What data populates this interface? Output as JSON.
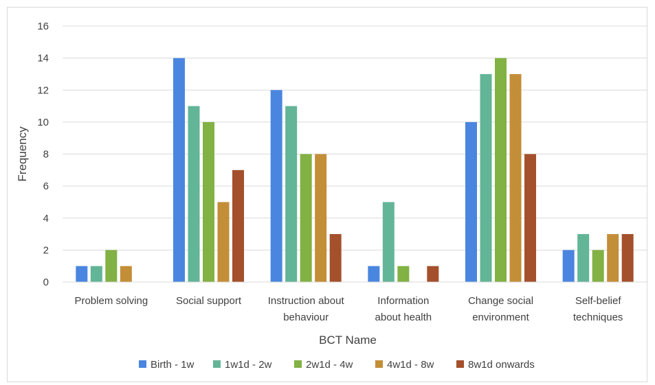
{
  "chart_data": {
    "type": "bar",
    "title": "",
    "xlabel": "BCT Name",
    "ylabel": "Frequency",
    "ylim": [
      0,
      16
    ],
    "yticks": [
      0,
      2,
      4,
      6,
      8,
      10,
      12,
      14,
      16
    ],
    "grid": true,
    "legend_position": "bottom",
    "categories": [
      [
        "Problem solving"
      ],
      [
        "Social support"
      ],
      [
        "Instruction about",
        "behaviour"
      ],
      [
        "Information",
        "about health"
      ],
      [
        "Change social",
        "environment"
      ],
      [
        "Self-belief",
        "techniques"
      ]
    ],
    "series": [
      {
        "name": "Birth - 1w",
        "color": "#4a86e0",
        "values": [
          1,
          14,
          12,
          1,
          10,
          2
        ]
      },
      {
        "name": "1w1d - 2w",
        "color": "#63b597",
        "values": [
          1,
          11,
          11,
          5,
          13,
          3
        ]
      },
      {
        "name": "2w1d - 4w",
        "color": "#82b144",
        "values": [
          2,
          10,
          8,
          1,
          14,
          2
        ]
      },
      {
        "name": "4w1d - 8w",
        "color": "#c38e38",
        "values": [
          1,
          5,
          8,
          0,
          13,
          3
        ]
      },
      {
        "name": "8w1d onwards",
        "color": "#a4502c",
        "values": [
          0,
          7,
          3,
          1,
          8,
          3
        ]
      }
    ]
  }
}
